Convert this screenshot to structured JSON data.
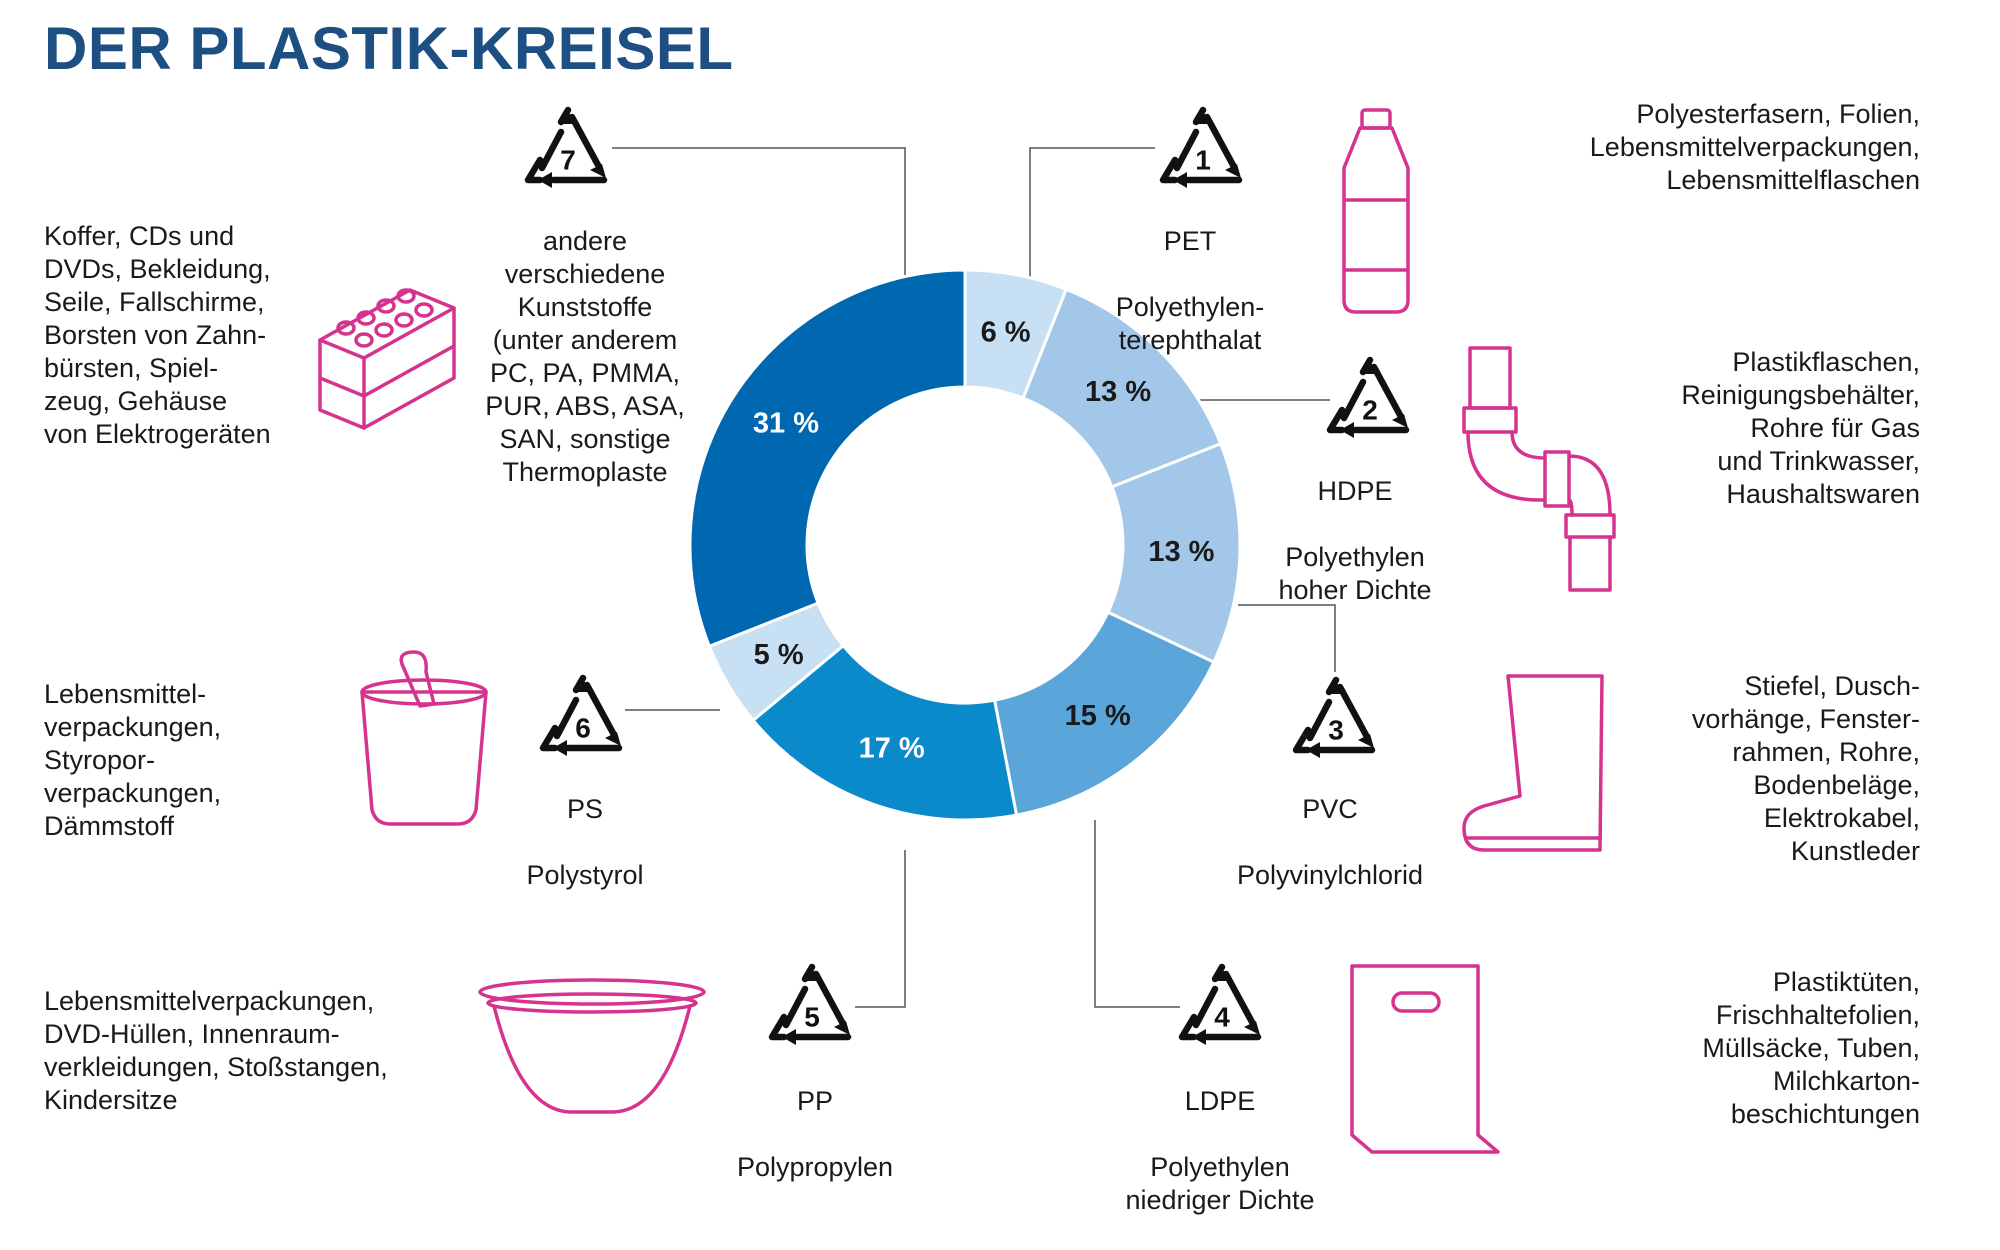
{
  "title": "DER PLASTIK-KREISEL",
  "colors": {
    "title": "#1d4f82",
    "accent_icon": "#d6338f",
    "leader": "#555555"
  },
  "chart_data": {
    "type": "pie",
    "donut": true,
    "title": "DER PLASTIK-KREISEL",
    "unit": "%",
    "slices": [
      {
        "code": "1",
        "abbr": "PET",
        "name": "Polyethylen-\nterephthalat",
        "value": 6,
        "label": "6 %",
        "color": "#c7e0f4",
        "label_color": "#1a1a1a",
        "uses": "Polyesterfasern, Folien,\nLebensmittelverpackungen,\nLebensmittelflaschen",
        "icon": "bottle-icon"
      },
      {
        "code": "2",
        "abbr": "HDPE",
        "name": "Polyethylen\nhoher Dichte",
        "value": 13,
        "label": "13 %",
        "color": "#a3c7e8",
        "label_color": "#1a1a1a",
        "uses": "Plastikflaschen,\nReinigungsbehälter,\nRohre für Gas\nund Trinkwasser,\nHaushaltswaren",
        "icon": "pipe-icon"
      },
      {
        "code": "3",
        "abbr": "PVC",
        "name": "Polyvinylchlorid",
        "value": 13,
        "label": "13 %",
        "color": "#a3c7e8",
        "label_color": "#1a1a1a",
        "uses": "Stiefel, Dusch-\nvorhänge, Fenster-\nrahmen, Rohre,\nBodenbeläge,\nElektrokabel,\nKunstleder",
        "icon": "boot-icon"
      },
      {
        "code": "4",
        "abbr": "LDPE",
        "name": "Polyethylen\nniedriger Dichte",
        "value": 15,
        "label": "15 %",
        "color": "#5aa5da",
        "label_color": "#1a1a1a",
        "uses": "Plastiktüten,\nFrischhaltefolien,\nMüllsäcke, Tuben,\nMilchkarton-\nbeschichtungen",
        "icon": "bag-icon"
      },
      {
        "code": "5",
        "abbr": "PP",
        "name": "Polypropylen",
        "value": 17,
        "label": "17 %",
        "color": "#0a89cb",
        "label_color": "#ffffff",
        "uses": "Lebensmittelverpackungen,\nDVD-Hüllen, Innenraum-\nverkleidungen, Stoßstangen,\nKindersitze",
        "icon": "bowl-icon"
      },
      {
        "code": "6",
        "abbr": "PS",
        "name": "Polystyrol",
        "value": 5,
        "label": "5 %",
        "color": "#c7e0f4",
        "label_color": "#1a1a1a",
        "uses": "Lebensmittel-\nverpackungen,\nStyropor-\nverpackungen,\nDämmstoff",
        "icon": "yogurt-cup-icon"
      },
      {
        "code": "7",
        "abbr": "",
        "name": "andere\nverschiedene\nKunststoffe\n(unter anderem\nPC, PA, PMMA,\nPUR, ABS, ASA,\nSAN, sonstige\nThermoplaste",
        "value": 31,
        "label": "31 %",
        "color": "#0067b1",
        "label_color": "#ffffff",
        "uses": "Koffer, CDs und\nDVDs, Bekleidung,\nSeile, Fallschirme,\nBorsten von Zahn-\nbürsten, Spiel-\nzeug, Gehäuse\nvon Elektrogeräten",
        "icon": "toy-brick-icon"
      }
    ]
  }
}
